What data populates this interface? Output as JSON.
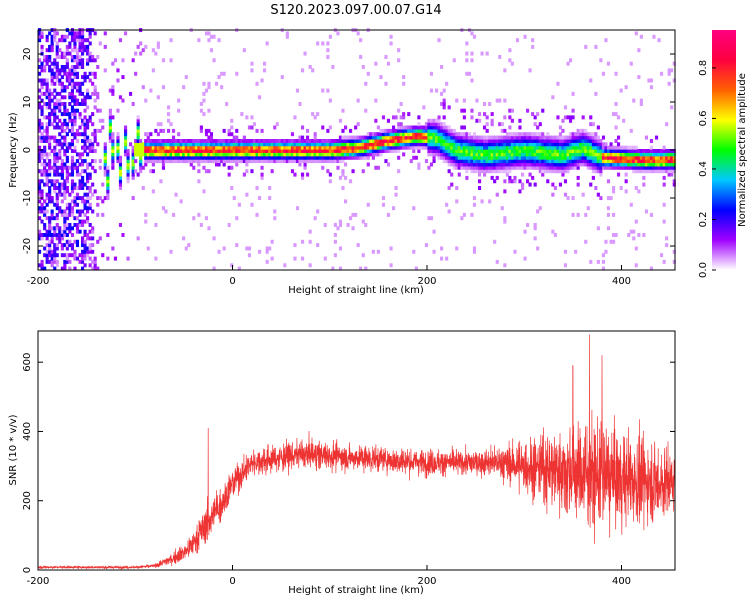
{
  "title": "S120.2023.097.00.07.G14",
  "chart_data": [
    {
      "type": "heatmap",
      "xlabel": "Height of straight line (km)",
      "ylabel": "Frequency (Hz)",
      "xlim": [
        -200,
        455
      ],
      "ylim": [
        -25,
        25
      ],
      "x_ticks": [
        -200,
        0,
        200,
        400
      ],
      "y_ticks": [
        -20,
        -10,
        0,
        10,
        20
      ],
      "x_tick_labels": [
        "-200",
        "0",
        "200",
        "400"
      ],
      "y_tick_labels": [
        "-20",
        "-10",
        "0",
        "10",
        "20"
      ],
      "colorbar": {
        "label": "Normalized spectral amplitude",
        "range": [
          0,
          0.95
        ],
        "ticks": [
          0.0,
          0.2,
          0.4,
          0.6,
          0.8
        ],
        "tick_labels": [
          "0.0",
          "0.2",
          "0.4",
          "0.6",
          "0.8"
        ],
        "colormap": [
          "#ffffff",
          "#a000ff",
          "#0000ff",
          "#00c8ff",
          "#00ff00",
          "#ffff00",
          "#ff6000",
          "#ff0040",
          "#ff0080"
        ]
      },
      "ridge": {
        "x": [
          -95,
          -50,
          0,
          50,
          100,
          130,
          160,
          190,
          210,
          230,
          260,
          300,
          340,
          360,
          380,
          420,
          455
        ],
        "y": [
          0,
          0,
          0,
          0,
          0,
          0.5,
          2,
          3,
          2.5,
          0,
          -1,
          0,
          -1,
          0.5,
          -1.5,
          -2,
          -2
        ]
      },
      "noise_region_x": [
        -200,
        -135
      ],
      "diagonal_streaks_x": [
        -140,
        -90
      ]
    },
    {
      "type": "line",
      "xlabel": "Height of straight line (km)",
      "ylabel": "SNR (10 * v/v)",
      "xlim": [
        -200,
        455
      ],
      "ylim": [
        0,
        690
      ],
      "x_ticks": [
        -200,
        0,
        200,
        400
      ],
      "y_ticks": [
        0,
        200,
        400,
        600
      ],
      "x_tick_labels": [
        "-200",
        "0",
        "200",
        "400"
      ],
      "y_tick_labels": [
        "0",
        "200",
        "400",
        "600"
      ],
      "color": "#ee3333",
      "envelope": {
        "x": [
          -200,
          -100,
          -80,
          -60,
          -45,
          -30,
          -20,
          -10,
          0,
          20,
          40,
          60,
          80,
          100,
          150,
          200,
          250,
          280,
          300,
          330,
          360,
          380,
          420,
          455
        ],
        "y": [
          8,
          8,
          12,
          35,
          60,
          120,
          160,
          200,
          250,
          310,
          320,
          330,
          335,
          330,
          320,
          310,
          310,
          310,
          300,
          290,
          280,
          270,
          260,
          250
        ],
        "spread": [
          5,
          5,
          8,
          25,
          45,
          70,
          80,
          70,
          60,
          55,
          55,
          55,
          55,
          55,
          50,
          50,
          50,
          70,
          100,
          150,
          200,
          200,
          170,
          130
        ]
      },
      "peaks": [
        {
          "x": -25,
          "y": 410
        },
        {
          "x": 367,
          "y": 680
        },
        {
          "x": 350,
          "y": 590
        },
        {
          "x": 380,
          "y": 620
        }
      ]
    }
  ]
}
